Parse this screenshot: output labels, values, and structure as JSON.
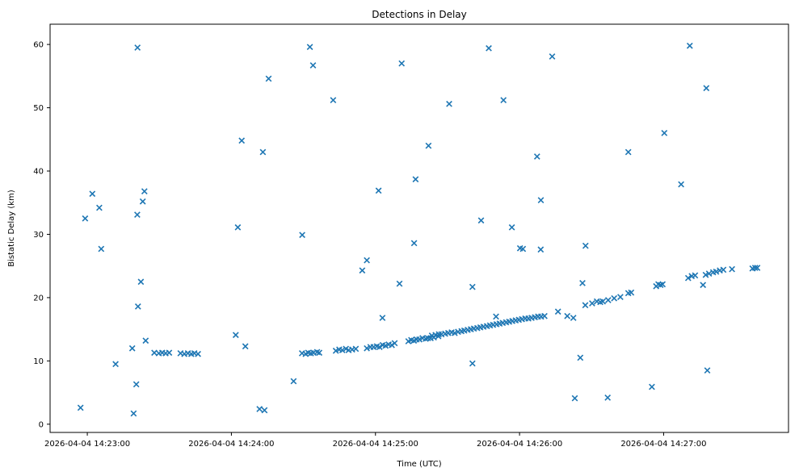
{
  "figure": {
    "title": "Detections in Delay",
    "xlabel": "Time (UTC)",
    "ylabel": "Bistatic Delay (km)"
  },
  "chart_data": {
    "type": "scatter",
    "title": "Detections in Delay",
    "xlabel": "Time (UTC)",
    "ylabel": "Bistatic Delay (km)",
    "marker": "x",
    "marker_color": "#1f77b4",
    "background_color": "#ffffff",
    "grid": false,
    "legend": "none",
    "x_unit": "seconds after 2026-04-04 14:23:00 UTC",
    "xlim": [
      -15.5,
      292
    ],
    "ylim": [
      -1.3,
      63.2
    ],
    "x_ticks": [
      {
        "t": 0,
        "label": "2026-04-04 14:23:00"
      },
      {
        "t": 60,
        "label": "2026-04-04 14:24:00"
      },
      {
        "t": 120,
        "label": "2026-04-04 14:25:00"
      },
      {
        "t": 180,
        "label": "2026-04-04 14:26:00"
      },
      {
        "t": 240,
        "label": "2026-04-04 14:27:00"
      }
    ],
    "y_ticks": [
      0,
      10,
      20,
      30,
      40,
      50,
      60
    ],
    "points": [
      [
        -2.8,
        2.6
      ],
      [
        -0.9,
        32.5
      ],
      [
        2.1,
        36.4
      ],
      [
        5.0,
        34.2
      ],
      [
        5.8,
        27.7
      ],
      [
        11.8,
        9.5
      ],
      [
        18.7,
        12.0
      ],
      [
        19.3,
        1.7
      ],
      [
        20.4,
        6.3
      ],
      [
        20.8,
        33.1
      ],
      [
        20.9,
        59.5
      ],
      [
        21.1,
        18.6
      ],
      [
        22.3,
        22.5
      ],
      [
        23.1,
        35.2
      ],
      [
        23.8,
        36.8
      ],
      [
        24.3,
        13.2
      ],
      [
        27.9,
        11.3
      ],
      [
        29.8,
        11.2
      ],
      [
        31.2,
        11.3
      ],
      [
        32.6,
        11.2
      ],
      [
        34.1,
        11.3
      ],
      [
        38.8,
        11.2
      ],
      [
        40.4,
        11.1
      ],
      [
        41.9,
        11.2
      ],
      [
        43.3,
        11.1
      ],
      [
        44.6,
        11.2
      ],
      [
        46.1,
        11.1
      ],
      [
        61.8,
        14.1
      ],
      [
        62.7,
        31.1
      ],
      [
        64.3,
        44.8
      ],
      [
        65.8,
        12.3
      ],
      [
        71.7,
        2.4
      ],
      [
        73.1,
        43.0
      ],
      [
        73.8,
        2.2
      ],
      [
        75.5,
        54.6
      ],
      [
        85.9,
        6.8
      ],
      [
        89.4,
        11.2
      ],
      [
        89.5,
        29.9
      ],
      [
        90.9,
        11.1
      ],
      [
        92.0,
        11.3
      ],
      [
        92.7,
        59.6
      ],
      [
        93.1,
        11.2
      ],
      [
        94.0,
        56.7
      ],
      [
        94.2,
        11.3
      ],
      [
        95.7,
        11.4
      ],
      [
        96.6,
        11.3
      ],
      [
        102.4,
        51.2
      ],
      [
        103.5,
        11.6
      ],
      [
        104.9,
        11.8
      ],
      [
        106.2,
        11.7
      ],
      [
        107.7,
        11.9
      ],
      [
        108.8,
        11.7
      ],
      [
        110.3,
        11.8
      ],
      [
        111.8,
        11.9
      ],
      [
        114.5,
        24.3
      ],
      [
        116.4,
        25.9
      ],
      [
        116.4,
        12.0
      ],
      [
        117.9,
        12.2
      ],
      [
        119.2,
        12.2
      ],
      [
        120.6,
        12.3
      ],
      [
        121.3,
        36.9
      ],
      [
        121.7,
        12.2
      ],
      [
        122.9,
        16.8
      ],
      [
        123.0,
        12.5
      ],
      [
        124.2,
        12.4
      ],
      [
        125.5,
        12.6
      ],
      [
        126.8,
        12.5
      ],
      [
        128.0,
        12.8
      ],
      [
        130.0,
        22.2
      ],
      [
        130.9,
        57.0
      ],
      [
        133.7,
        13.1
      ],
      [
        134.9,
        13.3
      ],
      [
        136.0,
        13.2
      ],
      [
        136.1,
        28.6
      ],
      [
        136.7,
        38.7
      ],
      [
        137.1,
        13.4
      ],
      [
        138.3,
        13.4
      ],
      [
        139.6,
        13.6
      ],
      [
        140.9,
        13.5
      ],
      [
        141.8,
        13.6
      ],
      [
        142.1,
        44.0
      ],
      [
        143.0,
        13.6
      ],
      [
        144.3,
        13.7
      ],
      [
        143.5,
        14.0
      ],
      [
        145.0,
        14.1
      ],
      [
        146.2,
        13.9
      ],
      [
        146.4,
        14.2
      ],
      [
        147.5,
        14.2
      ],
      [
        149.0,
        14.3
      ],
      [
        150.3,
        14.4
      ],
      [
        150.7,
        50.6
      ],
      [
        151.7,
        14.5
      ],
      [
        153.0,
        14.4
      ],
      [
        154.4,
        14.6
      ],
      [
        155.8,
        14.7
      ],
      [
        157.0,
        14.8
      ],
      [
        158.4,
        14.9
      ],
      [
        159.7,
        15.0
      ],
      [
        160.4,
        21.7
      ],
      [
        160.4,
        9.6
      ],
      [
        161.0,
        15.1
      ],
      [
        162.4,
        15.2
      ],
      [
        163.7,
        15.3
      ],
      [
        164.0,
        32.2
      ],
      [
        165.0,
        15.4
      ],
      [
        166.4,
        15.5
      ],
      [
        167.2,
        59.4
      ],
      [
        167.7,
        15.6
      ],
      [
        169.0,
        15.7
      ],
      [
        170.2,
        17.0
      ],
      [
        170.4,
        15.8
      ],
      [
        171.7,
        15.9
      ],
      [
        173.0,
        16.0
      ],
      [
        173.3,
        51.2
      ],
      [
        174.4,
        16.1
      ],
      [
        175.7,
        16.2
      ],
      [
        176.8,
        31.1
      ],
      [
        177.0,
        16.3
      ],
      [
        178.4,
        16.4
      ],
      [
        179.7,
        16.5
      ],
      [
        180.2,
        27.8
      ],
      [
        181.0,
        16.6
      ],
      [
        181.4,
        27.7
      ],
      [
        182.4,
        16.7
      ],
      [
        183.7,
        16.7
      ],
      [
        185.0,
        16.8
      ],
      [
        186.4,
        16.9
      ],
      [
        187.3,
        42.3
      ],
      [
        187.7,
        17.0
      ],
      [
        188.8,
        27.6
      ],
      [
        188.9,
        35.4
      ],
      [
        189.0,
        17.0
      ],
      [
        190.4,
        17.1
      ],
      [
        193.6,
        58.1
      ],
      [
        196.0,
        17.8
      ],
      [
        199.9,
        17.1
      ],
      [
        202.4,
        16.8
      ],
      [
        203.0,
        4.1
      ],
      [
        205.3,
        10.5
      ],
      [
        206.2,
        22.3
      ],
      [
        207.4,
        18.8
      ],
      [
        207.5,
        28.2
      ],
      [
        210.2,
        19.1
      ],
      [
        212.2,
        19.4
      ],
      [
        213.6,
        19.3
      ],
      [
        214.7,
        19.4
      ],
      [
        216.7,
        4.2
      ],
      [
        216.9,
        19.6
      ],
      [
        219.4,
        19.9
      ],
      [
        222.0,
        20.1
      ],
      [
        225.3,
        20.7
      ],
      [
        225.3,
        43.0
      ],
      [
        226.5,
        20.8
      ],
      [
        235.1,
        5.9
      ],
      [
        236.9,
        21.8
      ],
      [
        237.8,
        22.1
      ],
      [
        238.7,
        22.0
      ],
      [
        239.6,
        22.1
      ],
      [
        240.3,
        46.0
      ],
      [
        247.3,
        37.9
      ],
      [
        250.2,
        23.1
      ],
      [
        250.9,
        59.8
      ],
      [
        251.7,
        23.4
      ],
      [
        253.1,
        23.5
      ],
      [
        256.4,
        22.0
      ],
      [
        257.5,
        23.6
      ],
      [
        257.8,
        53.1
      ],
      [
        258.2,
        8.5
      ],
      [
        258.9,
        23.8
      ],
      [
        260.6,
        24.0
      ],
      [
        261.9,
        24.1
      ],
      [
        263.4,
        24.3
      ],
      [
        264.9,
        24.4
      ],
      [
        268.5,
        24.5
      ],
      [
        277.0,
        24.6
      ],
      [
        278.1,
        24.7
      ],
      [
        279.0,
        24.7
      ]
    ]
  }
}
